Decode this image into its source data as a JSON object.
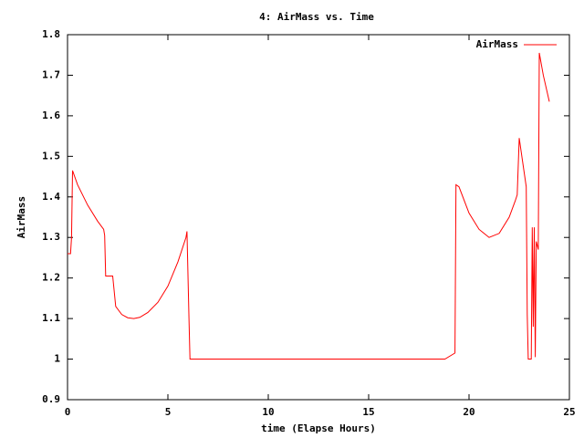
{
  "chart_data": {
    "type": "line",
    "title": "4: AirMass vs. Time",
    "x_label": "time (Elapse Hours)",
    "y_label": "AirMass",
    "x": [
      0,
      0.15,
      0.2,
      0.25,
      0.5,
      1,
      1.5,
      1.8,
      1.85,
      1.9,
      2.2,
      2.25,
      2.4,
      2.7,
      3.0,
      3.3,
      3.6,
      4,
      4.5,
      5,
      5.5,
      5.9,
      5.95,
      6.05,
      6.1,
      18.8,
      19.3,
      19.35,
      19.5,
      20,
      20.5,
      21,
      21.5,
      22,
      22.3,
      22.4,
      22.5,
      22.85,
      22.9,
      22.95,
      23.1,
      23.15,
      23.2,
      23.25,
      23.3,
      23.35,
      23.45,
      23.5,
      23.7,
      24
    ],
    "series": [
      {
        "name": "AirMass",
        "color": "#ff0000",
        "values": [
          1.26,
          1.26,
          1.3,
          1.465,
          1.43,
          1.38,
          1.34,
          1.32,
          1.305,
          1.205,
          1.205,
          1.205,
          1.13,
          1.11,
          1.102,
          1.1,
          1.103,
          1.115,
          1.14,
          1.18,
          1.24,
          1.3,
          1.315,
          1.1,
          1.0,
          1.0,
          1.015,
          1.43,
          1.425,
          1.36,
          1.32,
          1.3,
          1.31,
          1.35,
          1.39,
          1.405,
          1.545,
          1.425,
          1.11,
          1.0,
          1.0,
          1.325,
          1.08,
          1.325,
          1.005,
          1.29,
          1.27,
          1.755,
          1.7,
          1.635
        ]
      }
    ],
    "xlim": [
      0,
      25
    ],
    "xticks": [
      0,
      5,
      10,
      15,
      20,
      25
    ],
    "ylim": [
      0.9,
      1.8
    ],
    "yticks": [
      0.9,
      1,
      1.1,
      1.2,
      1.3,
      1.4,
      1.5,
      1.6,
      1.7,
      1.8
    ],
    "grid": false,
    "legend": "top-right"
  }
}
